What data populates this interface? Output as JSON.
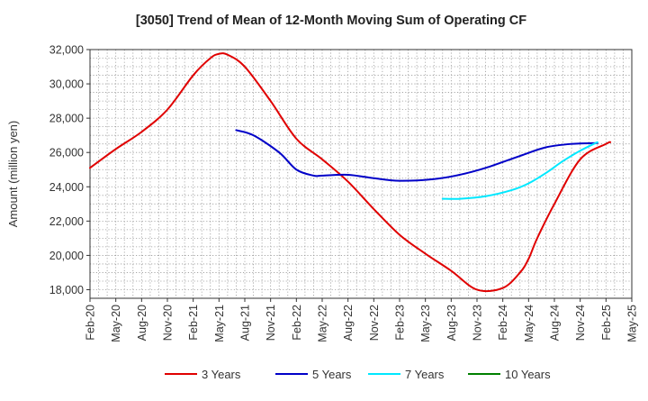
{
  "chart_data": {
    "type": "line",
    "title": "[3050]  Trend of Mean of 12-Month Moving Sum of Operating CF",
    "xlabel": "",
    "ylabel": "Amount (million yen)",
    "ylim": [
      17500,
      32000
    ],
    "yticks": [
      18000,
      20000,
      22000,
      24000,
      26000,
      28000,
      30000,
      32000
    ],
    "ytick_labels": [
      "18,000",
      "20,000",
      "22,000",
      "24,000",
      "26,000",
      "28,000",
      "30,000",
      "32,000"
    ],
    "x_tick_labels": [
      "Feb-20",
      "May-20",
      "Aug-20",
      "Nov-20",
      "Feb-21",
      "May-21",
      "Aug-21",
      "Nov-21",
      "Feb-22",
      "May-22",
      "Aug-22",
      "Nov-22",
      "Feb-23",
      "May-23",
      "Aug-23",
      "Nov-23",
      "Feb-24",
      "May-24",
      "Aug-24",
      "Nov-24",
      "Feb-25",
      "May-25"
    ],
    "x_range_months": [
      0,
      63
    ],
    "grid": true,
    "legend_position": "bottom",
    "series": [
      {
        "name": "3 Years",
        "color": "#e00000",
        "x": [
          0,
          3,
          6,
          9,
          12,
          14,
          15,
          16,
          18,
          21,
          24,
          27,
          30,
          33,
          36,
          39,
          42,
          45,
          48,
          50,
          51,
          52,
          54,
          57,
          60,
          60.5
        ],
        "values": [
          25100,
          26200,
          27200,
          28500,
          30500,
          31500,
          31750,
          31700,
          31000,
          29000,
          26800,
          25600,
          24300,
          22700,
          21200,
          20100,
          19100,
          18000,
          18100,
          19000,
          19800,
          21000,
          23000,
          25600,
          26500,
          26600
        ]
      },
      {
        "name": "5 Years",
        "color": "#0000c8",
        "x": [
          17,
          19,
          22,
          24,
          26,
          27,
          30,
          33,
          36,
          40,
          43,
          46,
          50,
          53,
          56,
          59
        ],
        "values": [
          27300,
          27000,
          26000,
          25000,
          24650,
          24650,
          24700,
          24500,
          24350,
          24450,
          24700,
          25100,
          25800,
          26300,
          26500,
          26550
        ]
      },
      {
        "name": "7 Years",
        "color": "#00e8ff",
        "x": [
          41,
          43,
          46,
          49,
          51,
          53,
          55,
          57,
          59
        ],
        "values": [
          23300,
          23300,
          23450,
          23800,
          24200,
          24800,
          25500,
          26100,
          26600
        ]
      },
      {
        "name": "10 Years",
        "color": "#008000",
        "x": [],
        "values": []
      }
    ]
  }
}
